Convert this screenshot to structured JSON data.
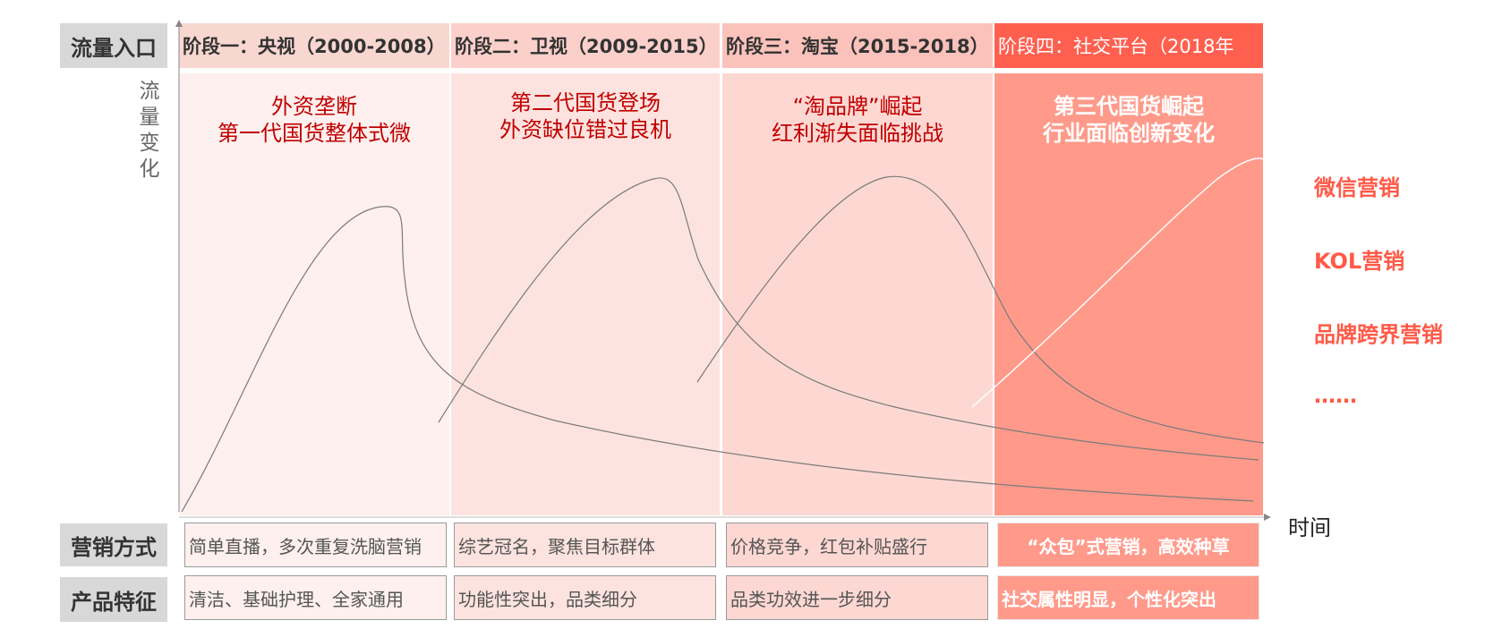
{
  "row_labels": {
    "traffic": "流量入口",
    "marketing": "营销方式",
    "product": "产品特征"
  },
  "axis": {
    "y_label_chars": [
      "流",
      "量",
      "变",
      "化"
    ],
    "x_label": "时间"
  },
  "stages": [
    {
      "header": "阶段一：央视（2000-2008）",
      "title_lines": [
        "外资垄断",
        "第一代国货整体式微"
      ],
      "marketing": "简单直播，多次重复洗脑营销",
      "product": "清洁、基础护理、全家通用"
    },
    {
      "header": "阶段二：卫视（2009-2015）",
      "title_lines": [
        "第二代国货登场",
        "外资缺位错过良机"
      ],
      "marketing": "综艺冠名，聚焦目标群体",
      "product": "功能性突出，品类细分"
    },
    {
      "header": "阶段三：淘宝（2015-2018）",
      "title_lines": [
        "“淘品牌”崛起",
        "红利渐失面临挑战"
      ],
      "marketing": "价格竞争，红包补贴盛行",
      "product": "品类功效进一步细分"
    },
    {
      "header": "阶段四：社交平台（2018年",
      "title_lines": [
        "第三代国货崛起",
        "行业面临创新变化"
      ],
      "marketing": "“众包”式营销，高效种草",
      "product": "社交属性明显，个性化突出"
    }
  ],
  "side_list": [
    "微信营销",
    "KOL营销",
    "品牌跨界营销",
    "……"
  ],
  "colors": {
    "stage_bg": [
      "#fdf0ee",
      "#fde3df",
      "#fdd8d3",
      "#ff9a8b"
    ],
    "header_bg": [
      "#f8d7d1",
      "#fbd0cb",
      "#fbc2bc",
      "#ff5f4f"
    ],
    "accent": "#ff5a47",
    "title_red": "#c00000"
  }
}
